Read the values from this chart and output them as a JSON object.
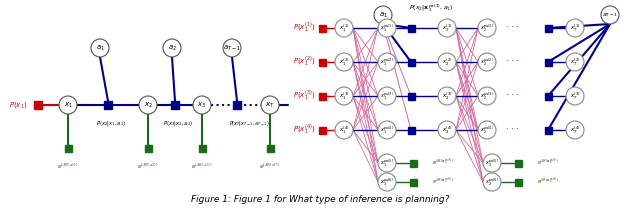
{
  "figsize": [
    6.4,
    2.09
  ],
  "dpi": 100,
  "background_color": "#ffffff",
  "caption": "Figure 1: Figure 1 for What type of inference is planning?",
  "caption_fontsize": 6.5,
  "colors": {
    "red": "#cc0000",
    "blue": "#00008b",
    "green": "#1a6b1a",
    "pink": "#d4679a",
    "circle_edge": "#888888",
    "circle_fill": "#ffffff",
    "dark_circle_edge": "#555555"
  }
}
